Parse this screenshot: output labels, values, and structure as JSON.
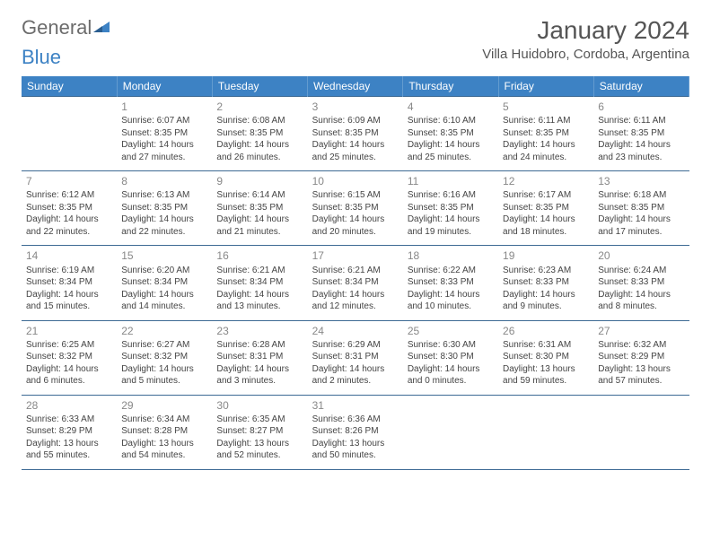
{
  "logo": {
    "text1": "General",
    "text2": "Blue"
  },
  "title": "January 2024",
  "location": "Villa Huidobro, Cordoba, Argentina",
  "colors": {
    "header_bg": "#3d82c4",
    "header_text": "#ffffff",
    "border": "#3d6a94",
    "daynum": "#888888",
    "body_text": "#444444",
    "logo_gray": "#6c6c6c",
    "logo_blue": "#3d82c4"
  },
  "weekdays": [
    "Sunday",
    "Monday",
    "Tuesday",
    "Wednesday",
    "Thursday",
    "Friday",
    "Saturday"
  ],
  "weeks": [
    [
      null,
      {
        "n": "1",
        "sr": "Sunrise: 6:07 AM",
        "ss": "Sunset: 8:35 PM",
        "d1": "Daylight: 14 hours",
        "d2": "and 27 minutes."
      },
      {
        "n": "2",
        "sr": "Sunrise: 6:08 AM",
        "ss": "Sunset: 8:35 PM",
        "d1": "Daylight: 14 hours",
        "d2": "and 26 minutes."
      },
      {
        "n": "3",
        "sr": "Sunrise: 6:09 AM",
        "ss": "Sunset: 8:35 PM",
        "d1": "Daylight: 14 hours",
        "d2": "and 25 minutes."
      },
      {
        "n": "4",
        "sr": "Sunrise: 6:10 AM",
        "ss": "Sunset: 8:35 PM",
        "d1": "Daylight: 14 hours",
        "d2": "and 25 minutes."
      },
      {
        "n": "5",
        "sr": "Sunrise: 6:11 AM",
        "ss": "Sunset: 8:35 PM",
        "d1": "Daylight: 14 hours",
        "d2": "and 24 minutes."
      },
      {
        "n": "6",
        "sr": "Sunrise: 6:11 AM",
        "ss": "Sunset: 8:35 PM",
        "d1": "Daylight: 14 hours",
        "d2": "and 23 minutes."
      }
    ],
    [
      {
        "n": "7",
        "sr": "Sunrise: 6:12 AM",
        "ss": "Sunset: 8:35 PM",
        "d1": "Daylight: 14 hours",
        "d2": "and 22 minutes."
      },
      {
        "n": "8",
        "sr": "Sunrise: 6:13 AM",
        "ss": "Sunset: 8:35 PM",
        "d1": "Daylight: 14 hours",
        "d2": "and 22 minutes."
      },
      {
        "n": "9",
        "sr": "Sunrise: 6:14 AM",
        "ss": "Sunset: 8:35 PM",
        "d1": "Daylight: 14 hours",
        "d2": "and 21 minutes."
      },
      {
        "n": "10",
        "sr": "Sunrise: 6:15 AM",
        "ss": "Sunset: 8:35 PM",
        "d1": "Daylight: 14 hours",
        "d2": "and 20 minutes."
      },
      {
        "n": "11",
        "sr": "Sunrise: 6:16 AM",
        "ss": "Sunset: 8:35 PM",
        "d1": "Daylight: 14 hours",
        "d2": "and 19 minutes."
      },
      {
        "n": "12",
        "sr": "Sunrise: 6:17 AM",
        "ss": "Sunset: 8:35 PM",
        "d1": "Daylight: 14 hours",
        "d2": "and 18 minutes."
      },
      {
        "n": "13",
        "sr": "Sunrise: 6:18 AM",
        "ss": "Sunset: 8:35 PM",
        "d1": "Daylight: 14 hours",
        "d2": "and 17 minutes."
      }
    ],
    [
      {
        "n": "14",
        "sr": "Sunrise: 6:19 AM",
        "ss": "Sunset: 8:34 PM",
        "d1": "Daylight: 14 hours",
        "d2": "and 15 minutes."
      },
      {
        "n": "15",
        "sr": "Sunrise: 6:20 AM",
        "ss": "Sunset: 8:34 PM",
        "d1": "Daylight: 14 hours",
        "d2": "and 14 minutes."
      },
      {
        "n": "16",
        "sr": "Sunrise: 6:21 AM",
        "ss": "Sunset: 8:34 PM",
        "d1": "Daylight: 14 hours",
        "d2": "and 13 minutes."
      },
      {
        "n": "17",
        "sr": "Sunrise: 6:21 AM",
        "ss": "Sunset: 8:34 PM",
        "d1": "Daylight: 14 hours",
        "d2": "and 12 minutes."
      },
      {
        "n": "18",
        "sr": "Sunrise: 6:22 AM",
        "ss": "Sunset: 8:33 PM",
        "d1": "Daylight: 14 hours",
        "d2": "and 10 minutes."
      },
      {
        "n": "19",
        "sr": "Sunrise: 6:23 AM",
        "ss": "Sunset: 8:33 PM",
        "d1": "Daylight: 14 hours",
        "d2": "and 9 minutes."
      },
      {
        "n": "20",
        "sr": "Sunrise: 6:24 AM",
        "ss": "Sunset: 8:33 PM",
        "d1": "Daylight: 14 hours",
        "d2": "and 8 minutes."
      }
    ],
    [
      {
        "n": "21",
        "sr": "Sunrise: 6:25 AM",
        "ss": "Sunset: 8:32 PM",
        "d1": "Daylight: 14 hours",
        "d2": "and 6 minutes."
      },
      {
        "n": "22",
        "sr": "Sunrise: 6:27 AM",
        "ss": "Sunset: 8:32 PM",
        "d1": "Daylight: 14 hours",
        "d2": "and 5 minutes."
      },
      {
        "n": "23",
        "sr": "Sunrise: 6:28 AM",
        "ss": "Sunset: 8:31 PM",
        "d1": "Daylight: 14 hours",
        "d2": "and 3 minutes."
      },
      {
        "n": "24",
        "sr": "Sunrise: 6:29 AM",
        "ss": "Sunset: 8:31 PM",
        "d1": "Daylight: 14 hours",
        "d2": "and 2 minutes."
      },
      {
        "n": "25",
        "sr": "Sunrise: 6:30 AM",
        "ss": "Sunset: 8:30 PM",
        "d1": "Daylight: 14 hours",
        "d2": "and 0 minutes."
      },
      {
        "n": "26",
        "sr": "Sunrise: 6:31 AM",
        "ss": "Sunset: 8:30 PM",
        "d1": "Daylight: 13 hours",
        "d2": "and 59 minutes."
      },
      {
        "n": "27",
        "sr": "Sunrise: 6:32 AM",
        "ss": "Sunset: 8:29 PM",
        "d1": "Daylight: 13 hours",
        "d2": "and 57 minutes."
      }
    ],
    [
      {
        "n": "28",
        "sr": "Sunrise: 6:33 AM",
        "ss": "Sunset: 8:29 PM",
        "d1": "Daylight: 13 hours",
        "d2": "and 55 minutes."
      },
      {
        "n": "29",
        "sr": "Sunrise: 6:34 AM",
        "ss": "Sunset: 8:28 PM",
        "d1": "Daylight: 13 hours",
        "d2": "and 54 minutes."
      },
      {
        "n": "30",
        "sr": "Sunrise: 6:35 AM",
        "ss": "Sunset: 8:27 PM",
        "d1": "Daylight: 13 hours",
        "d2": "and 52 minutes."
      },
      {
        "n": "31",
        "sr": "Sunrise: 6:36 AM",
        "ss": "Sunset: 8:26 PM",
        "d1": "Daylight: 13 hours",
        "d2": "and 50 minutes."
      },
      null,
      null,
      null
    ]
  ]
}
